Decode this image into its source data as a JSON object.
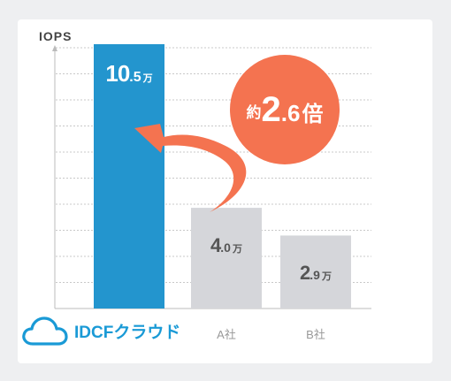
{
  "chart_data": {
    "type": "bar",
    "ylabel": "IOPS",
    "unit": "万",
    "categories": [
      "IDCFクラウド",
      "A社",
      "B社"
    ],
    "values": [
      10.5,
      4.0,
      2.9
    ],
    "value_labels": [
      {
        "int": "10",
        "dec": ".5",
        "unit": "万"
      },
      {
        "int": "4",
        "dec": ".0",
        "unit": "万"
      },
      {
        "int": "2",
        "dec": ".9",
        "unit": "万"
      }
    ],
    "ylim": [
      0,
      10.5
    ],
    "grid": true,
    "annotation": {
      "prefix": "約",
      "int": "2",
      "dec": ".6",
      "suffix": "倍"
    },
    "colors": {
      "highlight": "#2395ce",
      "others": "#d5d6da",
      "accent": "#f47350"
    }
  }
}
